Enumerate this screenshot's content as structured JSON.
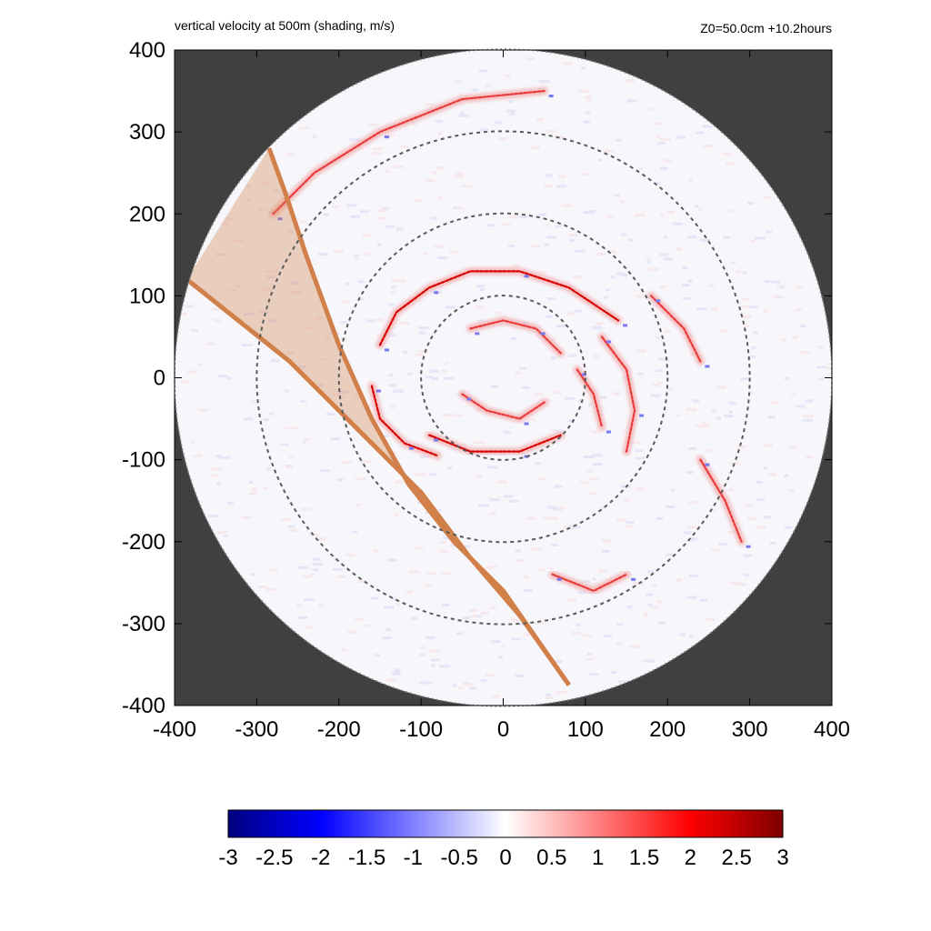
{
  "chart_data": {
    "type": "heatmap",
    "title": "vertical velocity at 500m (shading, m/s)",
    "annotation": "Z0=50.0cm  +10.2hours",
    "xlim": [
      -400,
      400
    ],
    "ylim": [
      -400,
      400
    ],
    "x_ticks": [
      -400,
      -300,
      -200,
      -100,
      0,
      100,
      200,
      300,
      400
    ],
    "y_ticks": [
      -400,
      -300,
      -200,
      -100,
      0,
      100,
      200,
      300,
      400
    ],
    "domain_radius": 400,
    "reference_circles_radius": [
      100,
      200,
      300
    ],
    "background_color": "#404040",
    "colorbar": {
      "range": [
        -3,
        3
      ],
      "ticks": [
        "-3",
        "-2.5",
        "-2",
        "-1.5",
        "-1",
        "-0.5",
        "0",
        "0.5",
        "1",
        "1.5",
        "2",
        "2.5",
        "3"
      ],
      "colors": [
        "#00007f",
        "#0000ff",
        "#ffffff",
        "#ff0000",
        "#7f0000"
      ]
    },
    "wedge": {
      "color": "#d2804a",
      "boundary_a": [
        [
          -285,
          280
        ],
        [
          -265,
          225
        ],
        [
          -240,
          150
        ],
        [
          -200,
          40
        ],
        [
          -160,
          -50
        ],
        [
          -115,
          -130
        ],
        [
          -60,
          -200
        ],
        [
          0,
          -260
        ],
        [
          80,
          -375
        ]
      ],
      "boundary_b": [
        [
          -385,
          120
        ],
        [
          -335,
          80
        ],
        [
          -260,
          20
        ],
        [
          -180,
          -60
        ],
        [
          -100,
          -140
        ],
        [
          -40,
          -220
        ],
        [
          20,
          -290
        ],
        [
          80,
          -375
        ]
      ]
    },
    "rainbands": [
      {
        "points": [
          [
            -90,
            -70
          ],
          [
            -40,
            -90
          ],
          [
            20,
            -90
          ],
          [
            70,
            -70
          ]
        ],
        "intensity": 1.8
      },
      {
        "points": [
          [
            -150,
            40
          ],
          [
            -130,
            80
          ],
          [
            -90,
            110
          ],
          [
            -40,
            130
          ],
          [
            20,
            130
          ],
          [
            80,
            110
          ],
          [
            140,
            70
          ]
        ],
        "intensity": 1.6
      },
      {
        "points": [
          [
            -160,
            -10
          ],
          [
            -150,
            -50
          ],
          [
            -120,
            -80
          ],
          [
            -80,
            -95
          ]
        ],
        "intensity": 1.5
      },
      {
        "points": [
          [
            120,
            50
          ],
          [
            150,
            10
          ],
          [
            160,
            -40
          ],
          [
            150,
            -90
          ]
        ],
        "intensity": 1.4
      },
      {
        "points": [
          [
            -40,
            60
          ],
          [
            0,
            70
          ],
          [
            40,
            60
          ],
          [
            70,
            30
          ]
        ],
        "intensity": 1.0
      },
      {
        "points": [
          [
            -50,
            -20
          ],
          [
            -20,
            -40
          ],
          [
            20,
            -50
          ],
          [
            50,
            -30
          ]
        ],
        "intensity": 1.0
      },
      {
        "points": [
          [
            -280,
            200
          ],
          [
            -230,
            250
          ],
          [
            -150,
            300
          ],
          [
            -50,
            340
          ],
          [
            50,
            350
          ]
        ],
        "intensity": 1.2
      },
      {
        "points": [
          [
            90,
            10
          ],
          [
            110,
            -20
          ],
          [
            120,
            -60
          ]
        ],
        "intensity": 1.1
      },
      {
        "points": [
          [
            60,
            -240
          ],
          [
            110,
            -260
          ],
          [
            150,
            -240
          ]
        ],
        "intensity": 1.3
      },
      {
        "points": [
          [
            240,
            -100
          ],
          [
            270,
            -150
          ],
          [
            290,
            -200
          ]
        ],
        "intensity": 1.3
      },
      {
        "points": [
          [
            180,
            100
          ],
          [
            220,
            60
          ],
          [
            240,
            20
          ]
        ],
        "intensity": 1.0
      }
    ]
  }
}
